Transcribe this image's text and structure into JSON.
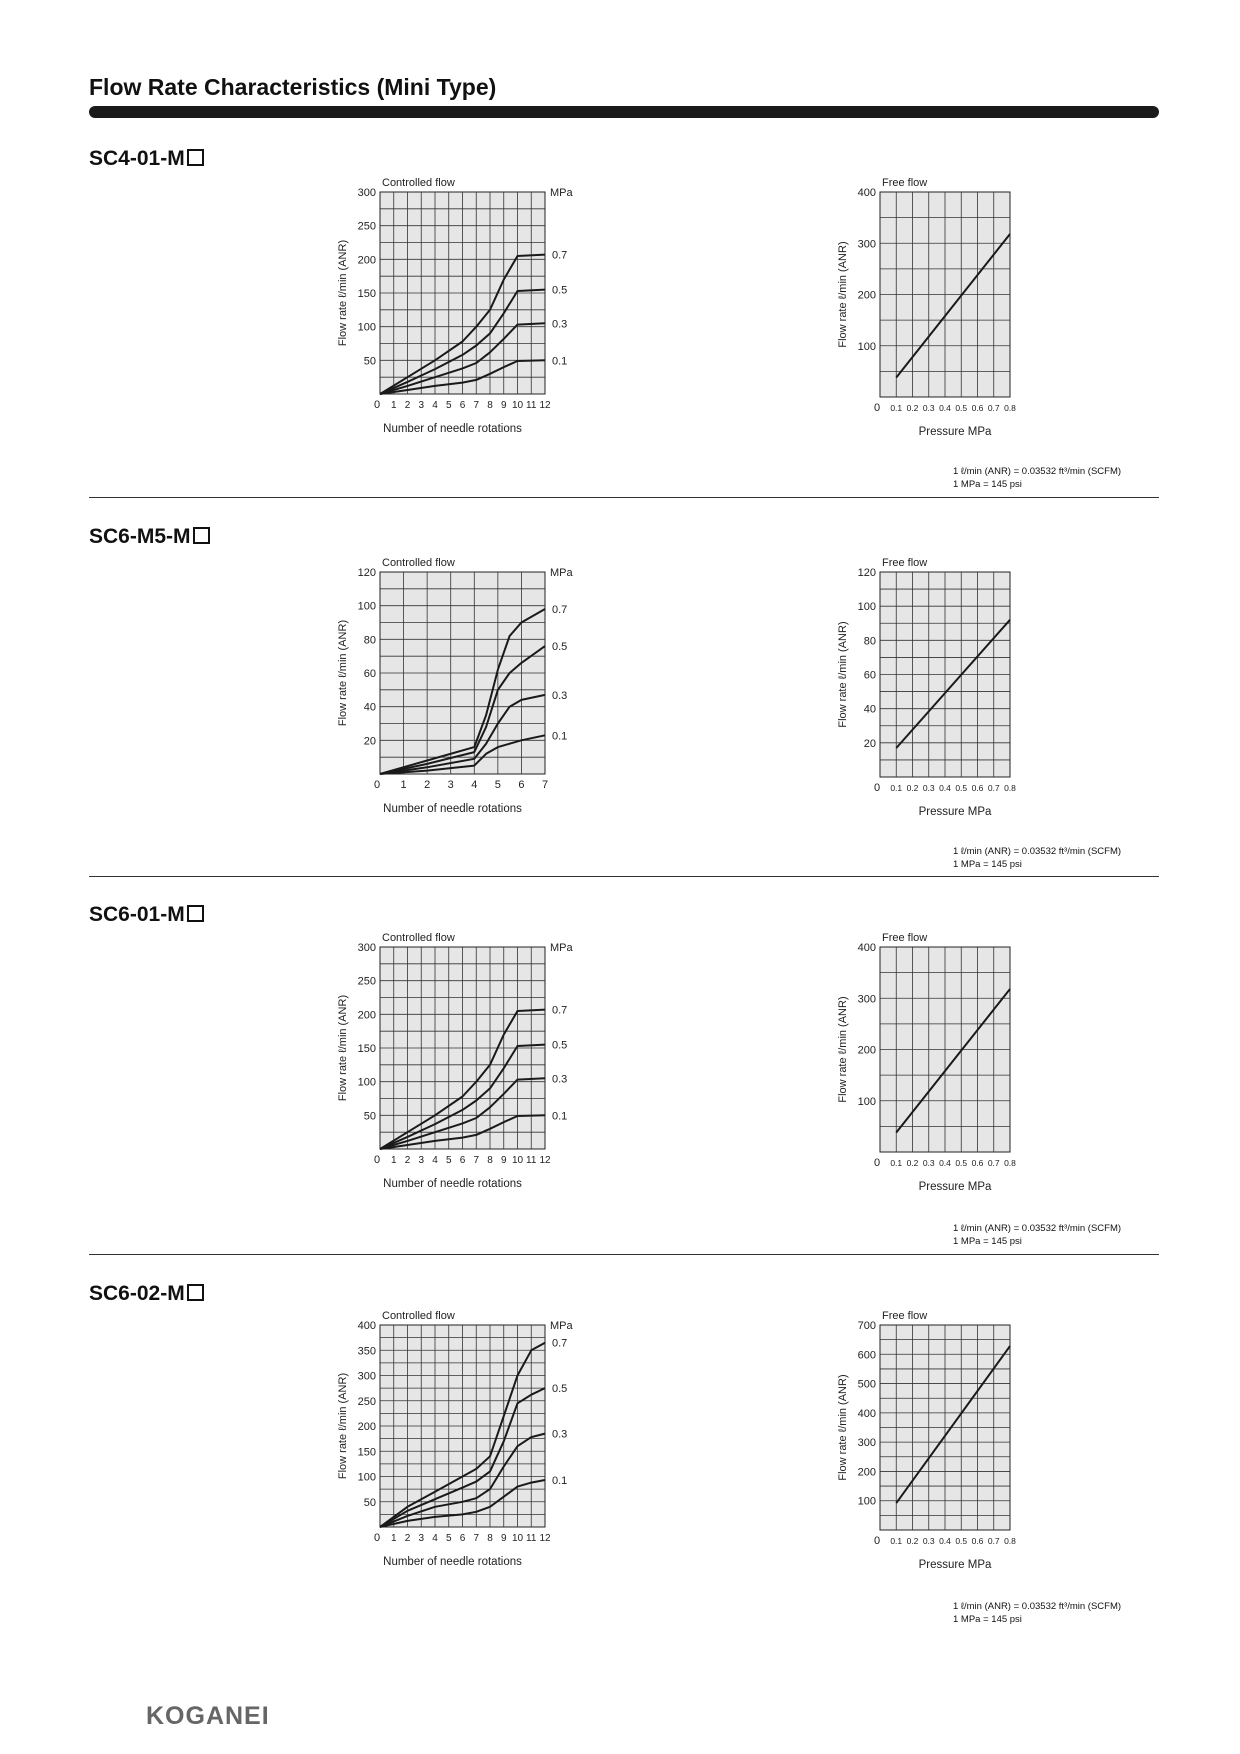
{
  "page": {
    "title": "Flow Rate Characteristics (Mini Type)",
    "logo": "KOGANEI",
    "colors": {
      "grid_bg": "#e6e6e6",
      "line": "#1a1a1a"
    }
  },
  "notes": {
    "line1": "1 ℓ/min (ANR) = 0.03532 ft³/min (SCFM)",
    "line2": "1 MPa = 145 psi"
  },
  "sections": [
    {
      "title": "SC4-01-M"
    },
    {
      "title": "SC6-M5-M"
    },
    {
      "title": "SC6-01-M"
    },
    {
      "title": "SC6-02-M"
    }
  ],
  "chart_data": [
    {
      "type": "line",
      "section": "SC4-01-M",
      "title": "Controlled flow",
      "xlabel": "Number of needle rotations",
      "ylabel": "Flow rate ℓ/min (ANR)",
      "series_unit_label": "MPa",
      "xlim": [
        0,
        12
      ],
      "ylim": [
        0,
        300
      ],
      "xticks": [
        "0",
        "1",
        "2",
        "3",
        "4",
        "5",
        "6",
        "7",
        "8",
        "9",
        "10",
        "11",
        "12"
      ],
      "yticks": [
        "50",
        "100",
        "150",
        "200",
        "250",
        "300"
      ],
      "grid": true,
      "series": [
        {
          "name": "0.7",
          "x": [
            0,
            2,
            4,
            6,
            7,
            8,
            9,
            10,
            12
          ],
          "y": [
            0,
            25,
            50,
            78,
            100,
            125,
            170,
            205,
            207
          ]
        },
        {
          "name": "0.5",
          "x": [
            0,
            2,
            4,
            6,
            7,
            8,
            9,
            10,
            12
          ],
          "y": [
            0,
            18,
            37,
            58,
            72,
            90,
            120,
            153,
            155
          ]
        },
        {
          "name": "0.3",
          "x": [
            0,
            2,
            4,
            6,
            7,
            8,
            9,
            10,
            12
          ],
          "y": [
            0,
            12,
            25,
            38,
            46,
            62,
            82,
            103,
            105
          ]
        },
        {
          "name": "0.1",
          "x": [
            0,
            2,
            4,
            6,
            7,
            8,
            9,
            10,
            12
          ],
          "y": [
            0,
            6,
            12,
            17,
            21,
            30,
            40,
            49,
            50
          ]
        }
      ]
    },
    {
      "type": "line",
      "section": "SC4-01-M",
      "title": "Free flow",
      "xlabel": "Pressure MPa",
      "ylabel": "Flow rate ℓ/min (ANR)",
      "xlim": [
        0,
        0.8
      ],
      "ylim": [
        0,
        400
      ],
      "xticks": [
        "0",
        "0.1",
        "0.2",
        "0.3",
        "0.4",
        "0.5",
        "0.6",
        "0.7",
        "0.8"
      ],
      "yticks": [
        "100",
        "200",
        "300",
        "400"
      ],
      "grid": true,
      "series": [
        {
          "x": [
            0.1,
            0.8
          ],
          "y": [
            38,
            318
          ]
        }
      ]
    },
    {
      "type": "line",
      "section": "SC6-M5-M",
      "title": "Controlled flow",
      "xlabel": "Number of needle rotations",
      "ylabel": "Flow rate ℓ/min (ANR)",
      "series_unit_label": "MPa",
      "xlim": [
        0,
        7
      ],
      "ylim": [
        0,
        120
      ],
      "xticks": [
        "0",
        "1",
        "2",
        "3",
        "4",
        "5",
        "6",
        "7"
      ],
      "yticks": [
        "20",
        "40",
        "60",
        "80",
        "100",
        "120"
      ],
      "grid": true,
      "series": [
        {
          "name": "0.7",
          "x": [
            0,
            2,
            4,
            4.5,
            5,
            5.5,
            6,
            7
          ],
          "y": [
            0,
            8,
            16,
            35,
            62,
            82,
            90,
            98
          ]
        },
        {
          "name": "0.5",
          "x": [
            0,
            2,
            4,
            4.5,
            5,
            5.5,
            6,
            7
          ],
          "y": [
            0,
            6,
            13,
            28,
            50,
            60,
            66,
            76
          ]
        },
        {
          "name": "0.3",
          "x": [
            0,
            2,
            4,
            4.5,
            5,
            5.5,
            6,
            7
          ],
          "y": [
            0,
            4,
            9,
            18,
            30,
            40,
            44,
            47
          ]
        },
        {
          "name": "0.1",
          "x": [
            0,
            2,
            4,
            4.5,
            5,
            5.5,
            6,
            7
          ],
          "y": [
            0,
            2,
            5,
            12,
            16,
            18,
            20,
            23
          ]
        }
      ]
    },
    {
      "type": "line",
      "section": "SC6-M5-M",
      "title": "Free flow",
      "xlabel": "Pressure MPa",
      "ylabel": "Flow rate ℓ/min (ANR)",
      "xlim": [
        0,
        0.8
      ],
      "ylim": [
        0,
        120
      ],
      "xticks": [
        "0",
        "0.1",
        "0.2",
        "0.3",
        "0.4",
        "0.5",
        "0.6",
        "0.7",
        "0.8"
      ],
      "yticks": [
        "20",
        "40",
        "60",
        "80",
        "100",
        "120"
      ],
      "grid": true,
      "series": [
        {
          "x": [
            0.1,
            0.8
          ],
          "y": [
            17,
            92
          ]
        }
      ]
    },
    {
      "type": "line",
      "section": "SC6-01-M",
      "title": "Controlled flow",
      "xlabel": "Number of needle rotations",
      "ylabel": "Flow rate ℓ/min (ANR)",
      "series_unit_label": "MPa",
      "xlim": [
        0,
        12
      ],
      "ylim": [
        0,
        300
      ],
      "xticks": [
        "0",
        "1",
        "2",
        "3",
        "4",
        "5",
        "6",
        "7",
        "8",
        "9",
        "10",
        "11",
        "12"
      ],
      "yticks": [
        "50",
        "100",
        "150",
        "200",
        "250",
        "300"
      ],
      "grid": true,
      "series": [
        {
          "name": "0.7",
          "x": [
            0,
            2,
            4,
            6,
            7,
            8,
            9,
            10,
            12
          ],
          "y": [
            0,
            25,
            50,
            78,
            100,
            125,
            170,
            205,
            207
          ]
        },
        {
          "name": "0.5",
          "x": [
            0,
            2,
            4,
            6,
            7,
            8,
            9,
            10,
            12
          ],
          "y": [
            0,
            18,
            37,
            58,
            72,
            90,
            120,
            153,
            155
          ]
        },
        {
          "name": "0.3",
          "x": [
            0,
            2,
            4,
            6,
            7,
            8,
            9,
            10,
            12
          ],
          "y": [
            0,
            12,
            25,
            38,
            46,
            62,
            82,
            103,
            105
          ]
        },
        {
          "name": "0.1",
          "x": [
            0,
            2,
            4,
            6,
            7,
            8,
            9,
            10,
            12
          ],
          "y": [
            0,
            6,
            12,
            17,
            21,
            30,
            40,
            49,
            50
          ]
        }
      ]
    },
    {
      "type": "line",
      "section": "SC6-01-M",
      "title": "Free flow",
      "xlabel": "Pressure MPa",
      "ylabel": "Flow rate ℓ/min (ANR)",
      "xlim": [
        0,
        0.8
      ],
      "ylim": [
        0,
        400
      ],
      "xticks": [
        "0",
        "0.1",
        "0.2",
        "0.3",
        "0.4",
        "0.5",
        "0.6",
        "0.7",
        "0.8"
      ],
      "yticks": [
        "100",
        "200",
        "300",
        "400"
      ],
      "grid": true,
      "series": [
        {
          "x": [
            0.1,
            0.8
          ],
          "y": [
            38,
            318
          ]
        }
      ]
    },
    {
      "type": "line",
      "section": "SC6-02-M",
      "title": "Controlled flow",
      "xlabel": "Number of needle rotations",
      "ylabel": "Flow rate ℓ/min (ANR)",
      "series_unit_label": "MPa",
      "xlim": [
        0,
        12
      ],
      "ylim": [
        0,
        400
      ],
      "xticks": [
        "0",
        "1",
        "2",
        "3",
        "4",
        "5",
        "6",
        "7",
        "8",
        "9",
        "10",
        "11",
        "12"
      ],
      "yticks": [
        "50",
        "100",
        "150",
        "200",
        "250",
        "300",
        "350",
        "400"
      ],
      "grid": true,
      "series": [
        {
          "name": "0.7",
          "x": [
            0,
            2,
            4,
            6,
            7,
            8,
            9,
            10,
            11,
            12
          ],
          "y": [
            0,
            40,
            70,
            100,
            115,
            140,
            220,
            300,
            350,
            365
          ]
        },
        {
          "name": "0.5",
          "x": [
            0,
            2,
            4,
            6,
            7,
            8,
            9,
            10,
            11,
            12
          ],
          "y": [
            0,
            32,
            55,
            78,
            90,
            110,
            170,
            245,
            262,
            275
          ]
        },
        {
          "name": "0.3",
          "x": [
            0,
            2,
            4,
            6,
            7,
            8,
            9,
            10,
            11,
            12
          ],
          "y": [
            0,
            22,
            40,
            50,
            57,
            75,
            120,
            160,
            178,
            185
          ]
        },
        {
          "name": "0.1",
          "x": [
            0,
            2,
            4,
            6,
            7,
            8,
            9,
            10,
            11,
            12
          ],
          "y": [
            0,
            12,
            20,
            25,
            30,
            40,
            60,
            80,
            88,
            93
          ]
        }
      ]
    },
    {
      "type": "line",
      "section": "SC6-02-M",
      "title": "Free flow",
      "xlabel": "Pressure MPa",
      "ylabel": "Flow rate ℓ/min (ANR)",
      "xlim": [
        0,
        0.8
      ],
      "ylim": [
        0,
        700
      ],
      "xticks": [
        "0",
        "0.1",
        "0.2",
        "0.3",
        "0.4",
        "0.5",
        "0.6",
        "0.7",
        "0.8"
      ],
      "yticks": [
        "100",
        "200",
        "300",
        "400",
        "500",
        "600",
        "700"
      ],
      "grid": true,
      "series": [
        {
          "x": [
            0.1,
            0.8
          ],
          "y": [
            92,
            628
          ]
        }
      ]
    }
  ]
}
